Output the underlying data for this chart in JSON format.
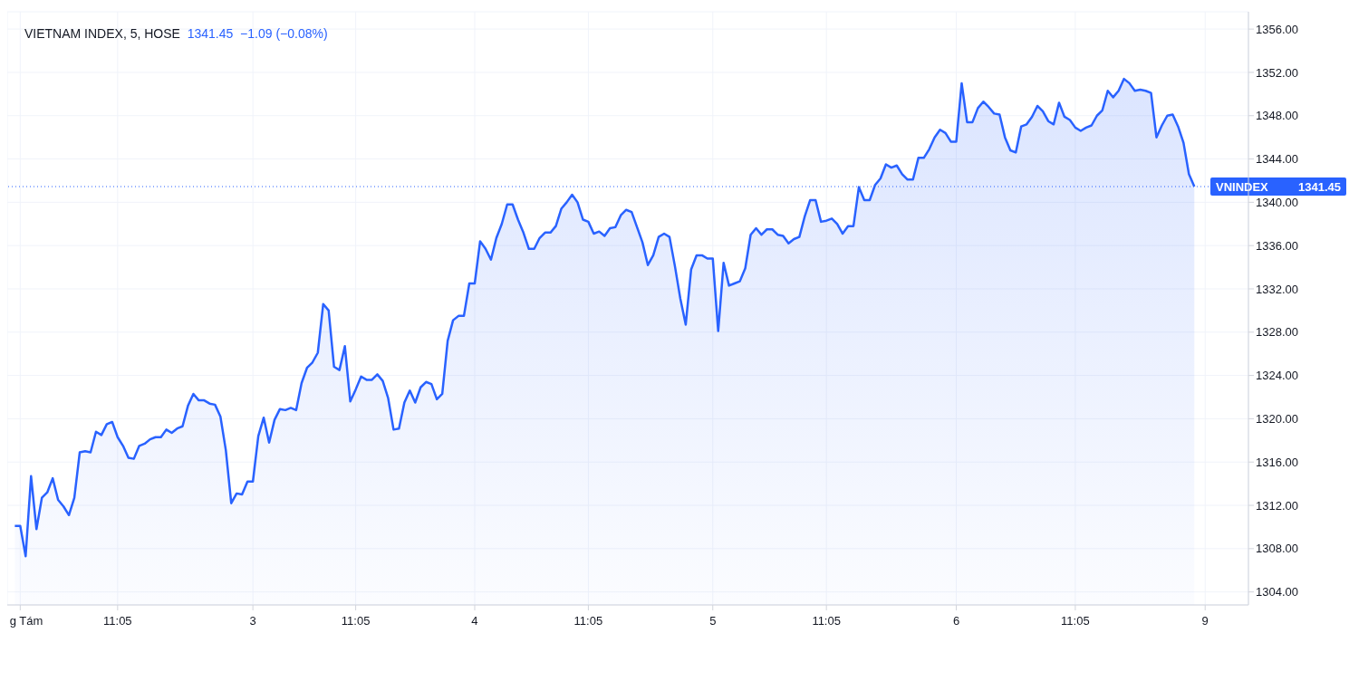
{
  "chart_data": {
    "type": "area",
    "title": "VIETNAM INDEX, 5, HOSE",
    "subtitle": "1341.45  −1.09 (−0.08%)",
    "color": "#2962ff",
    "grid": true,
    "categories": [
      null,
      "g Tám",
      null,
      null,
      null,
      null,
      null,
      null,
      null,
      null,
      null,
      null,
      null,
      null,
      null,
      null,
      null,
      null,
      null,
      "11:05",
      null,
      null,
      null,
      null,
      null,
      null,
      null,
      null,
      null,
      null,
      null,
      null,
      null,
      null,
      null,
      null,
      null,
      null,
      null,
      null,
      null,
      null,
      null,
      null,
      "3",
      null,
      null,
      null,
      null,
      null,
      null,
      null,
      null,
      null,
      null,
      null,
      null,
      null,
      null,
      null,
      null,
      null,
      null,
      "11:05",
      null,
      null,
      null,
      null,
      null,
      null,
      null,
      null,
      null,
      null,
      null,
      null,
      null,
      null,
      null,
      null,
      null,
      null,
      null,
      null,
      null,
      "4",
      null,
      null,
      null,
      null,
      null,
      null,
      null,
      null,
      null,
      null,
      null,
      null,
      null,
      null,
      null,
      null,
      null,
      null,
      null,
      null,
      "11:05",
      null,
      null,
      null,
      null,
      null,
      null,
      null,
      null,
      null,
      null,
      null,
      null,
      null,
      null,
      null,
      null,
      null,
      null,
      null,
      null,
      null,
      null,
      "5",
      null,
      null,
      null,
      null,
      null,
      null,
      null,
      null,
      null,
      null,
      null,
      null,
      null,
      null,
      null,
      null,
      null,
      null,
      null,
      null,
      "11:05",
      null,
      null,
      null,
      null,
      null,
      null,
      null,
      null,
      null,
      null,
      null,
      null,
      null,
      null,
      null,
      null,
      null,
      null,
      null,
      null,
      null,
      null,
      null,
      "6",
      null,
      null,
      null,
      null,
      null,
      null,
      null,
      null,
      null,
      null,
      null,
      null,
      null,
      null,
      null,
      null,
      null,
      null,
      null,
      null,
      null,
      "11:05",
      null,
      null,
      null,
      null,
      null,
      null,
      null,
      null,
      null,
      null,
      null,
      null,
      null,
      null,
      null,
      null,
      null,
      null,
      null,
      null,
      null,
      null,
      null,
      "9",
      null,
      null,
      null,
      null,
      null,
      null,
      null,
      null
    ],
    "values": [
      1310.1,
      1310.1,
      1307.3,
      1314.7,
      1309.8,
      1312.7,
      1313.2,
      1314.5,
      1312.5,
      1311.9,
      1311.1,
      1312.7,
      1316.9,
      1317.0,
      1316.9,
      1318.8,
      1318.5,
      1319.5,
      1319.7,
      1318.3,
      1317.5,
      1316.4,
      1316.3,
      1317.5,
      1317.7,
      1318.1,
      1318.3,
      1318.3,
      1319.0,
      1318.7,
      1319.1,
      1319.3,
      1321.2,
      1322.3,
      1321.7,
      1321.7,
      1321.4,
      1321.3,
      1320.2,
      1317.1,
      1312.2,
      1313.1,
      1313.0,
      1314.2,
      1314.2,
      1318.4,
      1320.1,
      1317.8,
      1319.9,
      1320.9,
      1320.8,
      1321.0,
      1320.8,
      1323.3,
      1324.7,
      1325.2,
      1326.1,
      1330.6,
      1330.0,
      1324.8,
      1324.5,
      1326.7,
      1321.6,
      1322.7,
      1323.9,
      1323.6,
      1323.6,
      1324.1,
      1323.5,
      1321.9,
      1319.0,
      1319.1,
      1321.5,
      1322.6,
      1321.5,
      1322.9,
      1323.4,
      1323.2,
      1321.8,
      1322.3,
      1327.2,
      1329.1,
      1329.5,
      1329.5,
      1332.5,
      1332.5,
      1336.4,
      1335.7,
      1334.7,
      1336.7,
      1338.0,
      1339.8,
      1339.8,
      1338.4,
      1337.2,
      1335.7,
      1335.7,
      1336.7,
      1337.2,
      1337.2,
      1337.8,
      1339.4,
      1340.0,
      1340.7,
      1340.0,
      1338.4,
      1338.2,
      1337.1,
      1337.3,
      1336.9,
      1337.6,
      1337.7,
      1338.8,
      1339.3,
      1339.1,
      1337.7,
      1336.3,
      1334.2,
      1335.1,
      1336.8,
      1337.1,
      1336.8,
      1334.1,
      1331.1,
      1328.7,
      1333.8,
      1335.1,
      1335.1,
      1334.8,
      1334.8,
      1328.1,
      1334.4,
      1332.3,
      1332.5,
      1332.7,
      1333.9,
      1337.0,
      1337.6,
      1337.0,
      1337.5,
      1337.5,
      1337.0,
      1336.9,
      1336.2,
      1336.6,
      1336.8,
      1338.7,
      1340.2,
      1340.2,
      1338.2,
      1338.3,
      1338.5,
      1338.0,
      1337.1,
      1337.8,
      1337.8,
      1341.4,
      1340.2,
      1340.2,
      1341.6,
      1342.2,
      1343.5,
      1343.2,
      1343.4,
      1342.6,
      1342.1,
      1342.1,
      1344.1,
      1344.1,
      1344.9,
      1346.0,
      1346.7,
      1346.4,
      1345.6,
      1345.6,
      1351.0,
      1347.4,
      1347.4,
      1348.7,
      1349.3,
      1348.8,
      1348.2,
      1348.1,
      1346.0,
      1344.8,
      1344.6,
      1347.0,
      1347.2,
      1347.9,
      1348.9,
      1348.4,
      1347.5,
      1347.2,
      1349.2,
      1347.9,
      1347.6,
      1346.9,
      1346.6,
      1346.9,
      1347.1,
      1348.0,
      1348.5,
      1350.3,
      1349.7,
      1350.3,
      1351.4,
      1351.0,
      1350.3,
      1350.4,
      1350.3,
      1350.1,
      1346.0,
      1347.1,
      1348.0,
      1348.1,
      1347.0,
      1345.5,
      1342.6,
      1341.45,
      null,
      null,
      null,
      null,
      null,
      null,
      null,
      null,
      null,
      null
    ],
    "ylim": [
      1302.8,
      1357.6
    ],
    "yticks": [
      {
        "value": 1304,
        "label": "1304.00"
      },
      {
        "value": 1308,
        "label": "1308.00"
      },
      {
        "value": 1312,
        "label": "1312.00"
      },
      {
        "value": 1316,
        "label": "1316.00"
      },
      {
        "value": 1320,
        "label": "1320.00"
      },
      {
        "value": 1324,
        "label": "1324.00"
      },
      {
        "value": 1328,
        "label": "1328.00"
      },
      {
        "value": 1332,
        "label": "1332.00"
      },
      {
        "value": 1336,
        "label": "1336.00"
      },
      {
        "value": 1340,
        "label": "1340.00"
      },
      {
        "value": 1344,
        "label": "1344.00"
      },
      {
        "value": 1348,
        "label": "1348.00"
      },
      {
        "value": 1352,
        "label": "1352.00"
      },
      {
        "value": 1356,
        "label": "1356.00"
      }
    ],
    "ref_lines": [
      {
        "axis": "y",
        "value": 1341.45,
        "label": "VNINDEX",
        "color": "#2962ff",
        "line_style": "dotted"
      }
    ],
    "annotations": [
      "1341.45"
    ]
  }
}
